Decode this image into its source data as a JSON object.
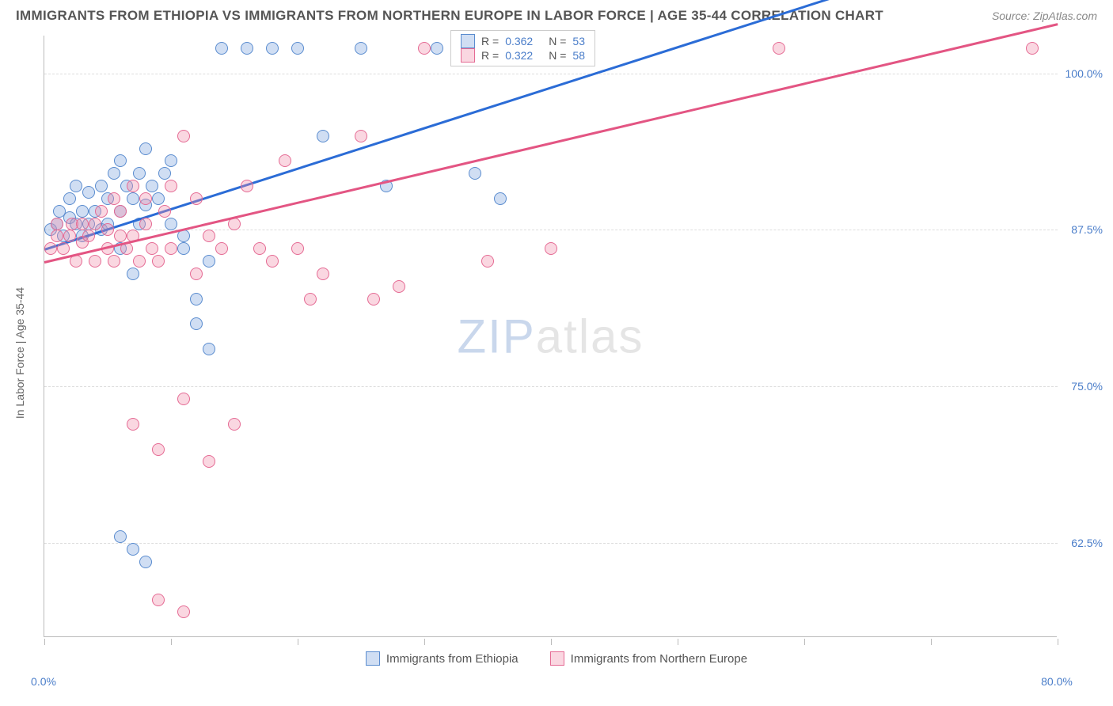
{
  "title": "IMMIGRANTS FROM ETHIOPIA VS IMMIGRANTS FROM NORTHERN EUROPE IN LABOR FORCE | AGE 35-44 CORRELATION CHART",
  "source": "Source: ZipAtlas.com",
  "watermark_left": "ZIP",
  "watermark_right": "atlas",
  "ylabel": "In Labor Force | Age 35-44",
  "chart": {
    "type": "scatter",
    "xlim": [
      0,
      80
    ],
    "ylim": [
      55,
      103
    ],
    "y_ticks": [
      62.5,
      75.0,
      87.5,
      100.0
    ],
    "y_tick_labels": [
      "62.5%",
      "75.0%",
      "87.5%",
      "100.0%"
    ],
    "x_ticks": [
      0,
      10,
      20,
      30,
      40,
      50,
      60,
      70,
      80
    ],
    "x_end_labels": {
      "start": "0.0%",
      "end": "80.0%"
    },
    "grid_color": "#dddddd",
    "axis_color": "#bbbbbb",
    "point_radius": 8,
    "series": [
      {
        "name": "Immigrants from Ethiopia",
        "fill": "rgba(120,160,220,0.35)",
        "stroke": "#5a8ccf",
        "points": [
          [
            0.5,
            87.5
          ],
          [
            1,
            88
          ],
          [
            1.2,
            89
          ],
          [
            1.5,
            87
          ],
          [
            2,
            88.5
          ],
          [
            2,
            90
          ],
          [
            2.5,
            88
          ],
          [
            2.5,
            91
          ],
          [
            3,
            87
          ],
          [
            3,
            89
          ],
          [
            3.5,
            90.5
          ],
          [
            3.5,
            88
          ],
          [
            4,
            89
          ],
          [
            4.5,
            91
          ],
          [
            4.5,
            87.5
          ],
          [
            5,
            88
          ],
          [
            5,
            90
          ],
          [
            5.5,
            92
          ],
          [
            6,
            89
          ],
          [
            6,
            86
          ],
          [
            6,
            93
          ],
          [
            6.5,
            91
          ],
          [
            7,
            90
          ],
          [
            7.5,
            92
          ],
          [
            7.5,
            88
          ],
          [
            8,
            89.5
          ],
          [
            8,
            94
          ],
          [
            8.5,
            91
          ],
          [
            9,
            90
          ],
          [
            9.5,
            92
          ],
          [
            10,
            93
          ],
          [
            10,
            88
          ],
          [
            11,
            87
          ],
          [
            11,
            86
          ],
          [
            12,
            82
          ],
          [
            12,
            80
          ],
          [
            13,
            85
          ],
          [
            13,
            78
          ],
          [
            14,
            102
          ],
          [
            16,
            102
          ],
          [
            18,
            102
          ],
          [
            20,
            102
          ],
          [
            22,
            95
          ],
          [
            25,
            102
          ],
          [
            27,
            91
          ],
          [
            31,
            102
          ],
          [
            34,
            92
          ],
          [
            36,
            90
          ],
          [
            43,
            102
          ],
          [
            7,
            84
          ],
          [
            6,
            63
          ],
          [
            7,
            62
          ],
          [
            8,
            61
          ]
        ],
        "trend": {
          "start": [
            0,
            86
          ],
          "end": [
            65,
            107
          ],
          "color": "#2b6cd6"
        }
      },
      {
        "name": "Immigrants from Northern Europe",
        "fill": "rgba(240,140,170,0.35)",
        "stroke": "#e56b94",
        "points": [
          [
            0.5,
            86
          ],
          [
            1,
            87
          ],
          [
            1,
            88
          ],
          [
            1.5,
            86
          ],
          [
            2,
            87
          ],
          [
            2.2,
            88
          ],
          [
            2.5,
            85
          ],
          [
            3,
            86.5
          ],
          [
            3,
            88
          ],
          [
            3.5,
            87
          ],
          [
            4,
            85
          ],
          [
            4,
            88
          ],
          [
            4.5,
            89
          ],
          [
            5,
            86
          ],
          [
            5,
            87.5
          ],
          [
            5.5,
            90
          ],
          [
            5.5,
            85
          ],
          [
            6,
            87
          ],
          [
            6,
            89
          ],
          [
            6.5,
            86
          ],
          [
            7,
            87
          ],
          [
            7,
            91
          ],
          [
            7.5,
            85
          ],
          [
            8,
            88
          ],
          [
            8,
            90
          ],
          [
            8.5,
            86
          ],
          [
            9,
            85
          ],
          [
            9.5,
            89
          ],
          [
            10,
            86
          ],
          [
            10,
            91
          ],
          [
            11,
            95
          ],
          [
            12,
            84
          ],
          [
            12,
            90
          ],
          [
            13,
            87
          ],
          [
            14,
            86
          ],
          [
            15,
            88
          ],
          [
            16,
            91
          ],
          [
            17,
            86
          ],
          [
            18,
            85
          ],
          [
            19,
            93
          ],
          [
            20,
            86
          ],
          [
            21,
            82
          ],
          [
            22,
            84
          ],
          [
            25,
            95
          ],
          [
            26,
            82
          ],
          [
            28,
            83
          ],
          [
            30,
            102
          ],
          [
            35,
            85
          ],
          [
            40,
            86
          ],
          [
            58,
            102
          ],
          [
            78,
            102
          ],
          [
            7,
            72
          ],
          [
            9,
            70
          ],
          [
            11,
            74
          ],
          [
            13,
            69
          ],
          [
            15,
            72
          ],
          [
            9,
            58
          ],
          [
            11,
            57
          ]
        ],
        "trend": {
          "start": [
            0,
            85
          ],
          "end": [
            80,
            104
          ],
          "color": "#e35583"
        }
      }
    ]
  },
  "stats_box": {
    "rows": [
      {
        "swatch_fill": "rgba(120,160,220,0.35)",
        "swatch_stroke": "#5a8ccf",
        "r_label": "R =",
        "r": "0.362",
        "n_label": "N =",
        "n": "53"
      },
      {
        "swatch_fill": "rgba(240,140,170,0.35)",
        "swatch_stroke": "#e56b94",
        "r_label": "R =",
        "r": "0.322",
        "n_label": "N =",
        "n": "58"
      }
    ]
  },
  "bottom_legend": [
    {
      "swatch_fill": "rgba(120,160,220,0.35)",
      "swatch_stroke": "#5a8ccf",
      "label": "Immigrants from Ethiopia"
    },
    {
      "swatch_fill": "rgba(240,140,170,0.35)",
      "swatch_stroke": "#e56b94",
      "label": "Immigrants from Northern Europe"
    }
  ]
}
